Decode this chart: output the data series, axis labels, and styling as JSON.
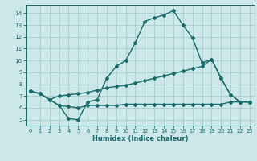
{
  "xlabel": "Humidex (Indice chaleur)",
  "xlim": [
    -0.5,
    23.5
  ],
  "ylim": [
    4.5,
    14.7
  ],
  "xticks": [
    0,
    1,
    2,
    3,
    4,
    5,
    6,
    7,
    8,
    9,
    10,
    11,
    12,
    13,
    14,
    15,
    16,
    17,
    18,
    19,
    20,
    21,
    22,
    23
  ],
  "yticks": [
    5,
    6,
    7,
    8,
    9,
    10,
    11,
    12,
    13,
    14
  ],
  "bg_color": "#cce8e8",
  "line_color": "#1a6b6b",
  "grid_color": "#afd0d0",
  "line1_x": [
    0,
    1,
    2,
    3,
    4,
    5,
    6,
    7,
    8,
    9,
    10,
    11,
    12,
    13,
    14,
    15,
    16,
    17,
    18,
    19,
    20,
    21,
    22,
    23
  ],
  "line1_y": [
    7.4,
    7.2,
    6.7,
    6.2,
    5.1,
    5.0,
    6.5,
    6.7,
    8.5,
    9.5,
    10.0,
    11.5,
    13.3,
    13.6,
    13.85,
    14.2,
    13.0,
    11.9,
    9.8,
    10.1,
    8.5,
    7.1,
    6.5,
    6.5
  ],
  "line2_x": [
    0,
    1,
    2,
    3,
    4,
    5,
    6,
    7,
    8,
    9,
    10,
    11,
    12,
    13,
    14,
    15,
    16,
    17,
    18,
    19,
    20,
    21,
    22,
    23
  ],
  "line2_y": [
    7.4,
    7.2,
    6.7,
    6.2,
    6.1,
    6.0,
    6.2,
    6.2,
    6.2,
    6.2,
    6.3,
    6.3,
    6.3,
    6.3,
    6.3,
    6.3,
    6.3,
    6.3,
    6.3,
    6.3,
    6.3,
    6.5,
    6.5,
    6.5
  ],
  "line3_x": [
    0,
    1,
    2,
    3,
    4,
    5,
    6,
    7,
    8,
    9,
    10,
    11,
    12,
    13,
    14,
    15,
    16,
    17,
    18,
    19,
    20,
    21,
    22,
    23
  ],
  "line3_y": [
    7.4,
    7.2,
    6.7,
    7.0,
    7.1,
    7.2,
    7.3,
    7.5,
    7.7,
    7.8,
    7.9,
    8.1,
    8.3,
    8.5,
    8.7,
    8.9,
    9.1,
    9.3,
    9.5,
    10.1,
    8.5,
    7.1,
    6.5,
    6.5
  ]
}
